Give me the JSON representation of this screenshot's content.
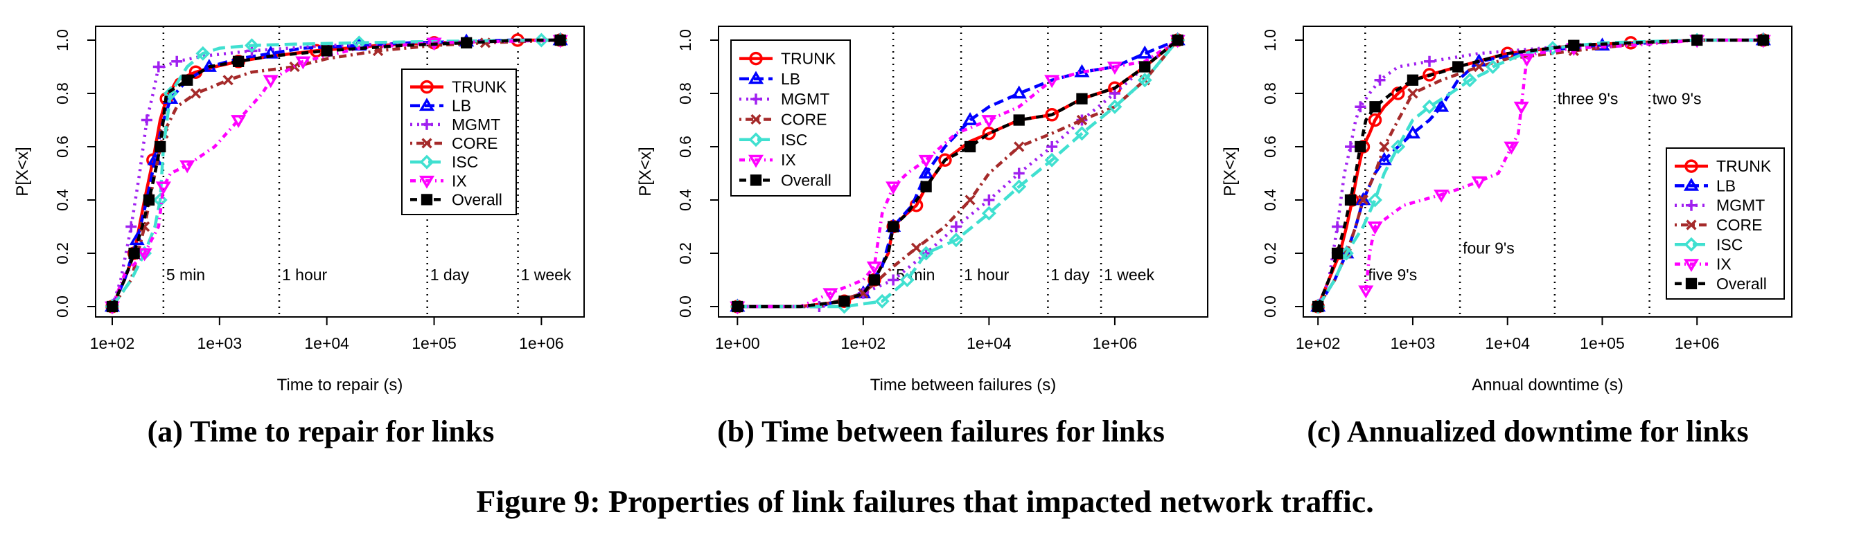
{
  "figure": {
    "caption": "Figure 9: Properties of link failures that impacted network traffic."
  },
  "style": {
    "series_colors": {
      "TRUNK": "#ff0000",
      "LB": "#0000ff",
      "MGMT": "#a020f0",
      "CORE": "#a52a2a",
      "ISC": "#40e0d0",
      "IX": "#ff00ff",
      "Overall": "#000000"
    },
    "series_markers": {
      "TRUNK": "circle",
      "LB": "triangle-up",
      "MGMT": "plus",
      "CORE": "cross",
      "ISC": "diamond",
      "IX": "triangle-down",
      "Overall": "square"
    }
  },
  "chart_data": [
    {
      "id": "a",
      "type": "line",
      "subtitle": "(a) Time to repair for links",
      "xlabel": "Time to repair (s)",
      "ylabel": "P[X<x]",
      "x_scale": "log",
      "xlim": [
        70,
        2500000
      ],
      "ylim": [
        0,
        1
      ],
      "x_ticks": [
        100,
        1000,
        10000,
        100000,
        1000000
      ],
      "x_tick_labels": [
        "1e+02",
        "1e+03",
        "1e+04",
        "1e+05",
        "1e+06"
      ],
      "y_ticks": [
        0,
        0.2,
        0.4,
        0.6,
        0.8,
        1.0
      ],
      "y_tick_labels": [
        "0.0",
        "0.2",
        "0.4",
        "0.6",
        "0.8",
        "1.0"
      ],
      "legend_position": "right",
      "reference_lines": [
        {
          "x": 300,
          "label": "5 min"
        },
        {
          "x": 3600,
          "label": "1 hour"
        },
        {
          "x": 86400,
          "label": "1 day"
        },
        {
          "x": 604800,
          "label": "1 week"
        }
      ],
      "reference_label_y": 0.12,
      "series": [
        {
          "name": "TRUNK",
          "x": [
            100,
            130,
            160,
            200,
            240,
            280,
            320,
            400,
            600,
            900,
            1500,
            3000,
            8000,
            30000,
            100000,
            300000,
            600000,
            1500000
          ],
          "y": [
            0,
            0.1,
            0.2,
            0.4,
            0.55,
            0.7,
            0.78,
            0.85,
            0.88,
            0.9,
            0.92,
            0.94,
            0.96,
            0.98,
            0.99,
            0.995,
            1.0,
            1.0
          ]
        },
        {
          "name": "LB",
          "x": [
            100,
            130,
            170,
            210,
            250,
            290,
            350,
            500,
            800,
            1500,
            3000,
            6000,
            20000,
            60000,
            200000,
            500000,
            1500000
          ],
          "y": [
            0,
            0.1,
            0.25,
            0.4,
            0.55,
            0.68,
            0.78,
            0.85,
            0.9,
            0.93,
            0.95,
            0.97,
            0.98,
            0.99,
            0.995,
            1.0,
            1.0
          ]
        },
        {
          "name": "MGMT",
          "x": [
            100,
            120,
            150,
            180,
            210,
            240,
            270,
            300,
            400,
            700,
            2000,
            10000,
            100000,
            1000000,
            1500000
          ],
          "y": [
            0,
            0.1,
            0.3,
            0.5,
            0.7,
            0.8,
            0.9,
            0.9,
            0.92,
            0.94,
            0.96,
            0.98,
            0.99,
            1.0,
            1.0
          ]
        },
        {
          "name": "CORE",
          "x": [
            100,
            150,
            200,
            250,
            300,
            400,
            600,
            800,
            1200,
            2000,
            5000,
            10000,
            30000,
            100000,
            300000,
            1500000
          ],
          "y": [
            0,
            0.1,
            0.3,
            0.5,
            0.65,
            0.75,
            0.8,
            0.82,
            0.85,
            0.88,
            0.9,
            0.93,
            0.96,
            0.98,
            0.99,
            1.0
          ]
        },
        {
          "name": "ISC",
          "x": [
            100,
            150,
            200,
            250,
            280,
            300,
            350,
            500,
            700,
            1000,
            2000,
            5000,
            20000,
            100000,
            1000000,
            1500000
          ],
          "y": [
            0,
            0.1,
            0.2,
            0.3,
            0.4,
            0.6,
            0.8,
            0.9,
            0.95,
            0.97,
            0.98,
            0.985,
            0.99,
            0.995,
            1.0,
            1.0
          ]
        },
        {
          "name": "IX",
          "x": [
            100,
            130,
            200,
            270,
            300,
            350,
            500,
            900,
            1500,
            2500,
            3000,
            4000,
            6000,
            20000,
            100000,
            1500000
          ],
          "y": [
            0,
            0.12,
            0.2,
            0.3,
            0.45,
            0.5,
            0.53,
            0.6,
            0.7,
            0.8,
            0.85,
            0.88,
            0.92,
            0.97,
            0.99,
            1.0
          ]
        },
        {
          "name": "Overall",
          "x": [
            100,
            130,
            160,
            190,
            220,
            250,
            280,
            320,
            500,
            800,
            1500,
            3000,
            10000,
            50000,
            200000,
            600000,
            1500000
          ],
          "y": [
            0,
            0.1,
            0.2,
            0.3,
            0.4,
            0.5,
            0.6,
            0.8,
            0.85,
            0.9,
            0.92,
            0.94,
            0.96,
            0.98,
            0.99,
            1.0,
            1.0
          ]
        }
      ]
    },
    {
      "id": "b",
      "type": "line",
      "subtitle": "(b) Time between failures for links",
      "xlabel": "Time between failures (s)",
      "ylabel": "P[X<x]",
      "x_scale": "log",
      "xlim": [
        0.5,
        30000000
      ],
      "ylim": [
        0,
        1
      ],
      "x_ticks": [
        1,
        100,
        10000,
        1000000
      ],
      "x_tick_labels": [
        "1e+00",
        "1e+02",
        "1e+04",
        "1e+06"
      ],
      "y_ticks": [
        0,
        0.2,
        0.4,
        0.6,
        0.8,
        1.0
      ],
      "y_tick_labels": [
        "0.0",
        "0.2",
        "0.4",
        "0.6",
        "0.8",
        "1.0"
      ],
      "legend_position": "top-left",
      "reference_lines": [
        {
          "x": 300,
          "label": "5 min"
        },
        {
          "x": 3600,
          "label": "1 hour"
        },
        {
          "x": 86400,
          "label": "1 day"
        },
        {
          "x": 604800,
          "label": "1 week"
        }
      ],
      "reference_label_y": 0.12,
      "series": [
        {
          "name": "TRUNK",
          "x": [
            1,
            10,
            50,
            100,
            150,
            250,
            300,
            400,
            700,
            1000,
            2000,
            5000,
            10000,
            30000,
            100000,
            300000,
            1000000,
            3000000,
            10000000
          ],
          "y": [
            0,
            0,
            0.02,
            0.05,
            0.1,
            0.2,
            0.3,
            0.33,
            0.38,
            0.45,
            0.55,
            0.62,
            0.65,
            0.7,
            0.72,
            0.78,
            0.82,
            0.9,
            1.0
          ]
        },
        {
          "name": "LB",
          "x": [
            1,
            20,
            100,
            200,
            300,
            600,
            1000,
            2000,
            5000,
            10000,
            30000,
            100000,
            300000,
            1000000,
            3000000,
            10000000
          ],
          "y": [
            0,
            0,
            0.05,
            0.15,
            0.3,
            0.38,
            0.5,
            0.6,
            0.7,
            0.75,
            0.8,
            0.85,
            0.88,
            0.9,
            0.95,
            1.0
          ]
        },
        {
          "name": "MGMT",
          "x": [
            1,
            20,
            100,
            300,
            1000,
            3000,
            10000,
            30000,
            100000,
            300000,
            1000000,
            3000000,
            10000000
          ],
          "y": [
            0,
            0,
            0.05,
            0.1,
            0.2,
            0.3,
            0.4,
            0.5,
            0.6,
            0.7,
            0.8,
            0.9,
            1.0
          ]
        },
        {
          "name": "CORE",
          "x": [
            1,
            20,
            100,
            300,
            700,
            2000,
            5000,
            10000,
            30000,
            100000,
            300000,
            1000000,
            3000000,
            10000000
          ],
          "y": [
            0,
            0,
            0.05,
            0.15,
            0.22,
            0.3,
            0.4,
            0.5,
            0.6,
            0.65,
            0.7,
            0.75,
            0.85,
            1.0
          ]
        },
        {
          "name": "ISC",
          "x": [
            1,
            50,
            200,
            500,
            1000,
            3000,
            10000,
            30000,
            100000,
            300000,
            1000000,
            3000000,
            10000000
          ],
          "y": [
            0,
            0,
            0.02,
            0.1,
            0.2,
            0.25,
            0.35,
            0.45,
            0.55,
            0.65,
            0.75,
            0.85,
            1.0
          ]
        },
        {
          "name": "IX",
          "x": [
            1,
            10,
            30,
            100,
            150,
            200,
            300,
            500,
            1000,
            3000,
            10000,
            30000,
            100000,
            300000,
            1000000,
            3000000,
            10000000
          ],
          "y": [
            0,
            0,
            0.05,
            0.1,
            0.15,
            0.35,
            0.45,
            0.5,
            0.55,
            0.65,
            0.7,
            0.75,
            0.85,
            0.88,
            0.9,
            0.92,
            1.0
          ]
        },
        {
          "name": "Overall",
          "x": [
            1,
            10,
            50,
            100,
            150,
            250,
            300,
            500,
            1000,
            2000,
            5000,
            10000,
            30000,
            100000,
            300000,
            1000000,
            3000000,
            10000000
          ],
          "y": [
            0,
            0,
            0.02,
            0.05,
            0.1,
            0.2,
            0.3,
            0.35,
            0.45,
            0.55,
            0.6,
            0.65,
            0.7,
            0.72,
            0.78,
            0.82,
            0.9,
            1.0
          ]
        }
      ]
    },
    {
      "id": "c",
      "type": "line",
      "subtitle": "(c) Annualized downtime for links",
      "xlabel": "Annual downtime (s)",
      "ylabel": "P[X<x]",
      "x_scale": "log",
      "xlim": [
        70,
        10000000
      ],
      "ylim": [
        0,
        1
      ],
      "x_ticks": [
        100,
        1000,
        10000,
        100000,
        1000000
      ],
      "x_tick_labels": [
        "1e+02",
        "1e+03",
        "1e+04",
        "1e+05",
        "1e+06"
      ],
      "y_ticks": [
        0,
        0.2,
        0.4,
        0.6,
        0.8,
        1.0
      ],
      "y_tick_labels": [
        "0.0",
        "0.2",
        "0.4",
        "0.6",
        "0.8",
        "1.0"
      ],
      "legend_position": "bottom-right",
      "reference_lines": [
        {
          "x": 315,
          "label": "five 9's",
          "label_y": 0.12
        },
        {
          "x": 3150,
          "label": "four 9's",
          "label_y": 0.22
        },
        {
          "x": 31500,
          "label": "three 9's",
          "label_y": 0.78
        },
        {
          "x": 315000,
          "label": "two 9's",
          "label_y": 0.78
        }
      ],
      "series": [
        {
          "name": "TRUNK",
          "x": [
            100,
            130,
            170,
            200,
            230,
            260,
            300,
            350,
            400,
            500,
            700,
            1000,
            1500,
            3000,
            10000,
            50000,
            200000,
            1000000,
            5000000
          ],
          "y": [
            0,
            0.1,
            0.2,
            0.3,
            0.4,
            0.5,
            0.6,
            0.65,
            0.7,
            0.75,
            0.8,
            0.85,
            0.87,
            0.9,
            0.95,
            0.98,
            0.99,
            1.0,
            1.0
          ]
        },
        {
          "name": "LB",
          "x": [
            100,
            150,
            200,
            250,
            300,
            400,
            500,
            700,
            1000,
            1500,
            2000,
            3000,
            5000,
            20000,
            100000,
            1000000,
            5000000
          ],
          "y": [
            0,
            0.1,
            0.2,
            0.3,
            0.4,
            0.5,
            0.55,
            0.6,
            0.65,
            0.7,
            0.75,
            0.85,
            0.92,
            0.96,
            0.98,
            1.0,
            1.0
          ]
        },
        {
          "name": "MGMT",
          "x": [
            100,
            130,
            160,
            190,
            220,
            250,
            280,
            350,
            450,
            700,
            1500,
            5000,
            50000,
            1000000,
            5000000
          ],
          "y": [
            0,
            0.1,
            0.3,
            0.5,
            0.6,
            0.7,
            0.75,
            0.8,
            0.85,
            0.9,
            0.92,
            0.95,
            0.98,
            1.0,
            1.0
          ]
        },
        {
          "name": "CORE",
          "x": [
            100,
            150,
            200,
            250,
            300,
            400,
            500,
            700,
            1000,
            2000,
            5000,
            10000,
            50000,
            300000,
            1000000,
            5000000
          ],
          "y": [
            0,
            0.1,
            0.2,
            0.3,
            0.4,
            0.5,
            0.6,
            0.7,
            0.8,
            0.85,
            0.9,
            0.93,
            0.96,
            0.99,
            1.0,
            1.0
          ]
        },
        {
          "name": "ISC",
          "x": [
            100,
            150,
            200,
            300,
            400,
            500,
            700,
            1000,
            1500,
            2500,
            4000,
            6000,
            7000,
            15000,
            30000,
            100000,
            1000000,
            5000000
          ],
          "y": [
            0,
            0.1,
            0.2,
            0.3,
            0.4,
            0.5,
            0.6,
            0.7,
            0.75,
            0.8,
            0.85,
            0.88,
            0.9,
            0.95,
            0.97,
            0.99,
            1.0,
            1.0
          ]
        },
        {
          "name": "IX",
          "x": [
            320,
            350,
            400,
            800,
            2000,
            3000,
            5000,
            8000,
            11000,
            13000,
            14000,
            15000,
            16000,
            20000,
            50000,
            200000,
            1000000,
            5000000
          ],
          "y": [
            0.06,
            0.2,
            0.3,
            0.38,
            0.42,
            0.44,
            0.47,
            0.5,
            0.6,
            0.65,
            0.75,
            0.85,
            0.93,
            0.95,
            0.97,
            0.98,
            1.0,
            1.0
          ]
        },
        {
          "name": "Overall",
          "x": [
            100,
            130,
            160,
            190,
            220,
            250,
            280,
            320,
            400,
            600,
            1000,
            2000,
            3000,
            10000,
            50000,
            200000,
            1000000,
            5000000
          ],
          "y": [
            0,
            0.1,
            0.2,
            0.3,
            0.4,
            0.5,
            0.6,
            0.7,
            0.75,
            0.8,
            0.85,
            0.88,
            0.9,
            0.95,
            0.98,
            0.99,
            1.0,
            1.0
          ]
        }
      ]
    }
  ]
}
